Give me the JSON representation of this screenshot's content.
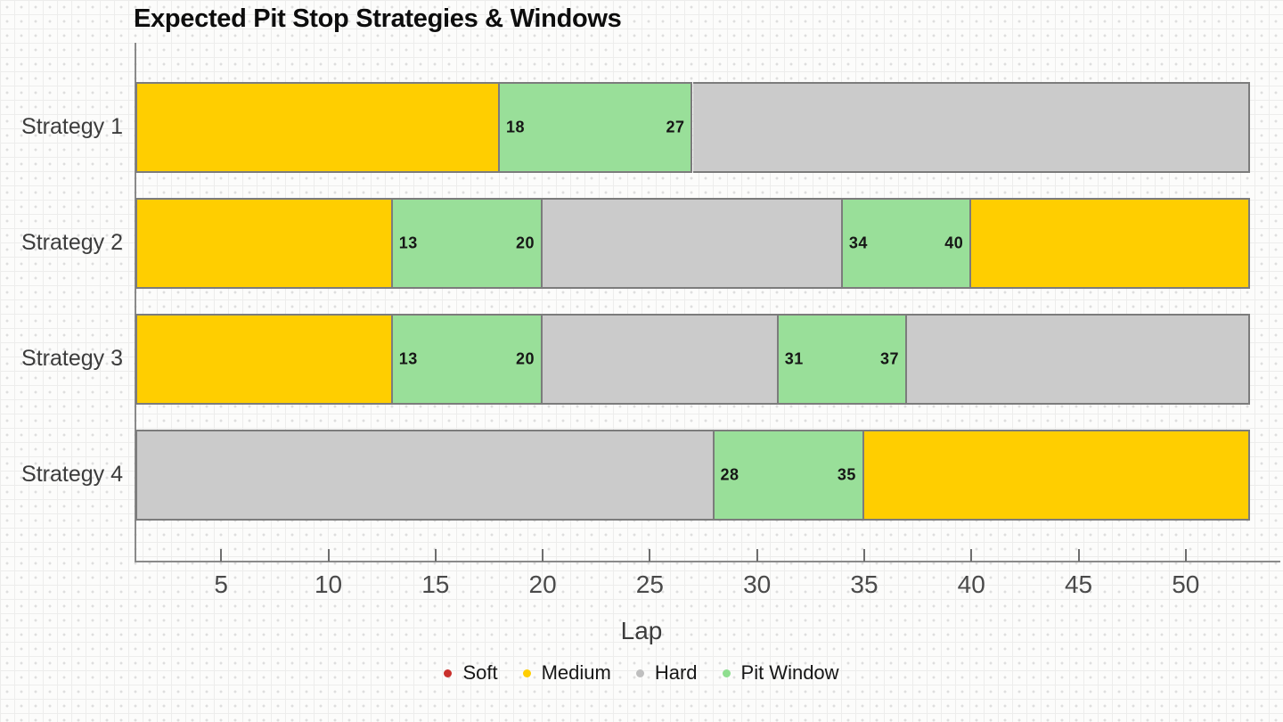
{
  "chart_data": {
    "type": "bar",
    "subtype": "horizontal-stacked-timeline",
    "title": "Expected Pit Stop Strategies & Windows",
    "xlabel": "Lap",
    "x_range": [
      1,
      53
    ],
    "x_ticks": [
      5,
      10,
      15,
      20,
      25,
      30,
      35,
      40,
      45,
      50
    ],
    "grid": "graph-paper-background",
    "legend_position": "bottom-center",
    "colors": {
      "Soft": "#C9302C",
      "Medium": "#FFCE00",
      "Hard": "#CBCBCB",
      "Pit Window": "#99DF99"
    },
    "legend": [
      {
        "label": "Soft",
        "color": "#C9302C"
      },
      {
        "label": "Medium",
        "color": "#FFCE00"
      },
      {
        "label": "Hard",
        "color": "#BFBFBF"
      },
      {
        "label": "Pit Window",
        "color": "#8FDE8F"
      }
    ],
    "rows": [
      {
        "label": "Strategy 1",
        "segments": [
          {
            "kind": "Medium",
            "start": 1,
            "end": 18
          },
          {
            "kind": "Pit Window",
            "start": 18,
            "end": 27,
            "labels": [
              "18",
              "27"
            ]
          },
          {
            "kind": "Hard",
            "start": 27,
            "end": 53
          }
        ]
      },
      {
        "label": "Strategy 2",
        "segments": [
          {
            "kind": "Medium",
            "start": 1,
            "end": 13
          },
          {
            "kind": "Pit Window",
            "start": 13,
            "end": 20,
            "labels": [
              "13",
              "20"
            ]
          },
          {
            "kind": "Hard",
            "start": 20,
            "end": 34
          },
          {
            "kind": "Pit Window",
            "start": 34,
            "end": 40,
            "labels": [
              "34",
              "40"
            ]
          },
          {
            "kind": "Medium",
            "start": 40,
            "end": 53
          }
        ]
      },
      {
        "label": "Strategy 3",
        "segments": [
          {
            "kind": "Medium",
            "start": 1,
            "end": 13
          },
          {
            "kind": "Pit Window",
            "start": 13,
            "end": 20,
            "labels": [
              "13",
              "20"
            ]
          },
          {
            "kind": "Hard",
            "start": 20,
            "end": 31
          },
          {
            "kind": "Pit Window",
            "start": 31,
            "end": 37,
            "labels": [
              "31",
              "37"
            ]
          },
          {
            "kind": "Hard",
            "start": 37,
            "end": 53
          }
        ]
      },
      {
        "label": "Strategy 4",
        "segments": [
          {
            "kind": "Hard",
            "start": 1,
            "end": 28
          },
          {
            "kind": "Pit Window",
            "start": 28,
            "end": 35,
            "labels": [
              "28",
              "35"
            ]
          },
          {
            "kind": "Medium",
            "start": 35,
            "end": 53
          }
        ]
      }
    ]
  }
}
